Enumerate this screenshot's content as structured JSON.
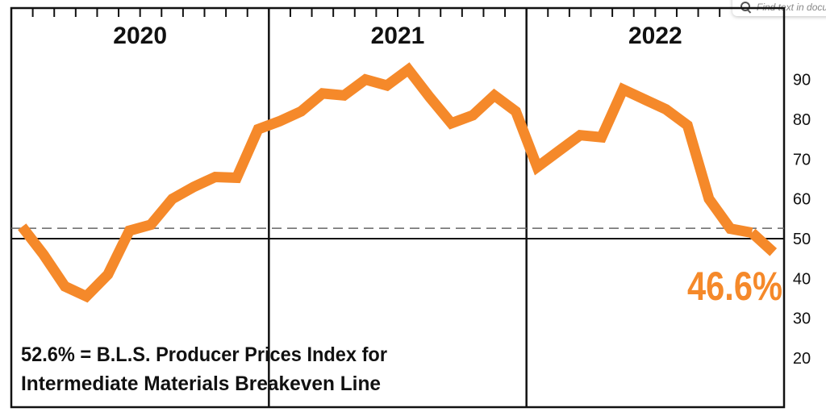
{
  "search": {
    "placeholder": "Find text in docu"
  },
  "chart_data": {
    "type": "line",
    "years": [
      "2020",
      "2021",
      "2022"
    ],
    "yticks": [
      "90",
      "80",
      "70",
      "60",
      "50",
      "40",
      "30",
      "20"
    ],
    "ylim": [
      14,
      96
    ],
    "x_range": [
      0,
      36
    ],
    "breakeven": {
      "value": 52.6
    },
    "baseline": {
      "value": 50
    },
    "callout": "46.6%",
    "note_lines": [
      "52.6% = B.L.S. Producer Prices Index for",
      "Intermediate Materials Breakeven Line"
    ],
    "series": [
      {
        "color": "#f5892a",
        "x": [
          0.5,
          1.5,
          2.5,
          3.5,
          4.5,
          5.5,
          6.5,
          7.5,
          8.5,
          9.5,
          10.5,
          11.5,
          12.5,
          13.5,
          14.5,
          15.5,
          16.5,
          17.5,
          18.5,
          19.5,
          20.5,
          21.5,
          22.5,
          23.5,
          24.5,
          25.5,
          26.5,
          27.5,
          28.5,
          29.5,
          30.5,
          31.5,
          32.5,
          33.5,
          34.5
        ],
        "y": [
          53,
          46,
          38,
          35.5,
          41,
          52,
          53.5,
          60,
          63,
          65.5,
          65.3,
          77.5,
          79.5,
          82,
          86.5,
          86,
          90,
          88.5,
          92.5,
          85.5,
          79,
          81,
          86,
          82,
          68,
          72,
          76,
          75.5,
          87.5,
          85,
          82.5,
          78.5,
          60,
          52.5,
          51.5
        ]
      },
      {
        "color": "#f5892a",
        "x": [
          34.5,
          35.5
        ],
        "y": [
          51.5,
          46.6
        ]
      }
    ],
    "grid": false,
    "legend": "none"
  }
}
